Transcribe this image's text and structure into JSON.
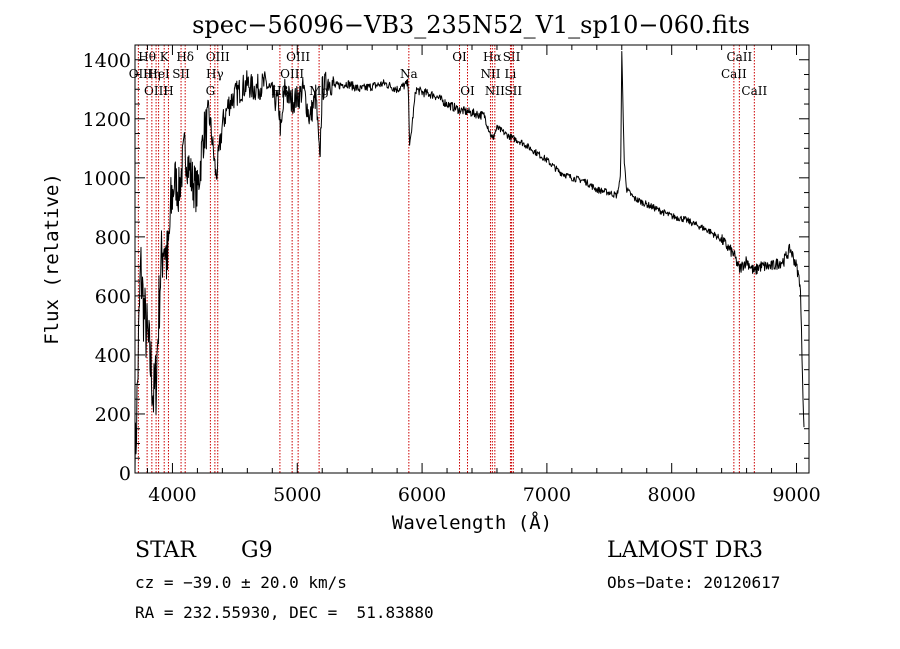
{
  "chart_data": {
    "type": "line",
    "title": "spec−56096−VB3_235N52_V1_sp10−060.fits",
    "xlabel": "Wavelength (Å)",
    "ylabel": "Flux (relative)",
    "xlim": [
      3700,
      9100
    ],
    "ylim": [
      0,
      1450
    ],
    "xticks": [
      4000,
      5000,
      6000,
      7000,
      8000,
      9000
    ],
    "xtick_labels": [
      "4000",
      "5000",
      "6000",
      "7000",
      "8000",
      "9000"
    ],
    "yticks": [
      0,
      200,
      400,
      600,
      800,
      1000,
      1200,
      1400
    ],
    "ytick_labels": [
      "0",
      "200",
      "400",
      "600",
      "800",
      "1000",
      "1200",
      "1400"
    ],
    "spectrum_anchors": {
      "wavelength": [
        3700,
        3720,
        3745,
        3770,
        3800,
        3830,
        3850,
        3870,
        3900,
        3930,
        3960,
        3990,
        4020,
        4050,
        4100,
        4150,
        4200,
        4250,
        4300,
        4350,
        4400,
        4450,
        4500,
        4550,
        4600,
        4650,
        4700,
        4750,
        4800,
        4850,
        4870,
        4900,
        4950,
        5000,
        5050,
        5100,
        5150,
        5180,
        5200,
        5250,
        5300,
        5400,
        5500,
        5600,
        5700,
        5800,
        5890,
        5900,
        5950,
        6000,
        6100,
        6200,
        6300,
        6400,
        6500,
        6563,
        6600,
        6700,
        6800,
        6900,
        7000,
        7100,
        7200,
        7300,
        7400,
        7500,
        7560,
        7590,
        7600,
        7620,
        7640,
        7700,
        7800,
        7900,
        8000,
        8100,
        8200,
        8300,
        8400,
        8498,
        8542,
        8600,
        8662,
        8700,
        8800,
        8900,
        8950,
        9000,
        9030,
        9050,
        9060
      ],
      "flux": [
        0,
        300,
        700,
        550,
        450,
        350,
        250,
        320,
        650,
        800,
        700,
        900,
        1000,
        950,
        1100,
        1000,
        950,
        1150,
        1200,
        1000,
        1180,
        1250,
        1280,
        1300,
        1320,
        1300,
        1310,
        1320,
        1280,
        1250,
        1150,
        1300,
        1260,
        1270,
        1300,
        1200,
        1280,
        1050,
        1300,
        1330,
        1310,
        1320,
        1300,
        1310,
        1320,
        1300,
        1320,
        1100,
        1300,
        1290,
        1280,
        1250,
        1230,
        1220,
        1210,
        1130,
        1170,
        1140,
        1120,
        1090,
        1060,
        1020,
        1000,
        990,
        960,
        950,
        940,
        1000,
        1420,
        1050,
        960,
        930,
        910,
        890,
        870,
        860,
        840,
        820,
        790,
        740,
        690,
        720,
        680,
        700,
        700,
        720,
        760,
        700,
        640,
        300,
        150
      ]
    },
    "lines": [
      {
        "label": "Hθ",
        "wavelength": 3797,
        "row": 0
      },
      {
        "label": "OII",
        "wavelength": 3727,
        "row": 1
      },
      {
        "label": "OIII",
        "wavelength": 3869,
        "row": 2
      },
      {
        "label": "Hη",
        "wavelength": 3835,
        "row": 1
      },
      {
        "label": "K",
        "wavelength": 3934,
        "row": 0
      },
      {
        "label": "HeI",
        "wavelength": 3889,
        "row": 1
      },
      {
        "label": "H",
        "wavelength": 3968,
        "row": 2
      },
      {
        "label": "Hδ",
        "wavelength": 4102,
        "row": 0
      },
      {
        "label": "SII",
        "wavelength": 4069,
        "row": 1
      },
      {
        "label": "OIII",
        "wavelength": 4363,
        "row": 0
      },
      {
        "label": "Hγ",
        "wavelength": 4340,
        "row": 1
      },
      {
        "label": "G",
        "wavelength": 4304,
        "row": 2
      },
      {
        "label": "OIII",
        "wavelength": 5007,
        "row": 0
      },
      {
        "label": "OIII",
        "wavelength": 4959,
        "row": 1
      },
      {
        "label": "Hβ",
        "wavelength": 4861,
        "row": 2
      },
      {
        "label": "Mg",
        "wavelength": 5175,
        "row": 2
      },
      {
        "label": "Na",
        "wavelength": 5894,
        "row": 1
      },
      {
        "label": "OI",
        "wavelength": 6300,
        "row": 0
      },
      {
        "label": "OI",
        "wavelength": 6364,
        "row": 2
      },
      {
        "label": "Hα",
        "wavelength": 6563,
        "row": 0
      },
      {
        "label": "NII",
        "wavelength": 6548,
        "row": 1
      },
      {
        "label": "NII",
        "wavelength": 6583,
        "row": 2
      },
      {
        "label": "SII",
        "wavelength": 6717,
        "row": 0
      },
      {
        "label": "Li",
        "wavelength": 6708,
        "row": 1
      },
      {
        "label": "SII",
        "wavelength": 6731,
        "row": 2
      },
      {
        "label": "CaII",
        "wavelength": 8542,
        "row": 0
      },
      {
        "label": "CaII",
        "wavelength": 8498,
        "row": 1
      },
      {
        "label": "CaII",
        "wavelength": 8662,
        "row": 2
      }
    ],
    "line_color": "#cc0000"
  },
  "footer": {
    "object_class": "STAR",
    "subclass": "G9",
    "survey": "LAMOST DR3",
    "cz": "cz = −39.0 ± 20.0 km/s",
    "obs_date": "Obs−Date: 20120617",
    "coords": "RA = 232.55930, DEC =  51.83880"
  }
}
